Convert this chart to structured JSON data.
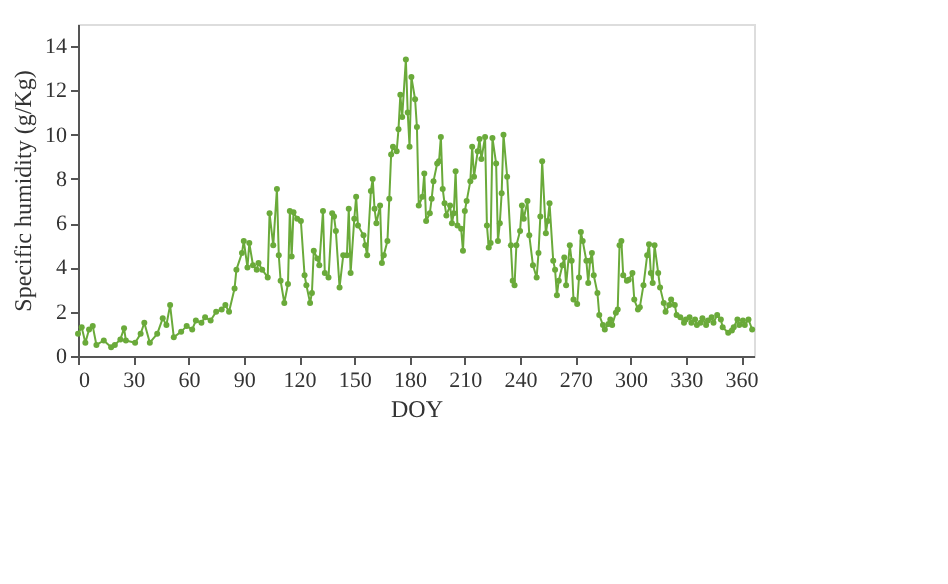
{
  "chart_data": {
    "type": "line",
    "xlabel": "DOY",
    "ylabel": "Specific humidity (g/Kg)",
    "xlim": [
      0,
      367
    ],
    "ylim": [
      0,
      15
    ],
    "xticks": [
      0,
      30,
      60,
      90,
      120,
      150,
      180,
      210,
      240,
      270,
      300,
      330,
      360
    ],
    "yticks": [
      0,
      2,
      4,
      6,
      8,
      10,
      12,
      14
    ],
    "grid": false,
    "marker": "circle",
    "line_style": "solid",
    "x": [
      0,
      2,
      4,
      6,
      8,
      10,
      14,
      18,
      20,
      23,
      25,
      26,
      31,
      34,
      36,
      39,
      43,
      46,
      48,
      50,
      52,
      56,
      59,
      62,
      64,
      67,
      69,
      72,
      75,
      78,
      80,
      82,
      85,
      86,
      89,
      90,
      92,
      93,
      95,
      97,
      98,
      100,
      103,
      104,
      106,
      108,
      109,
      110,
      112,
      114,
      115,
      116,
      117,
      119,
      121,
      123,
      124,
      126,
      127,
      128,
      130,
      131,
      133,
      134,
      136,
      138,
      139,
      140,
      142,
      144,
      146,
      147,
      148,
      150,
      151,
      152,
      155,
      156,
      157,
      159,
      160,
      161,
      162,
      164,
      165,
      166,
      168,
      169,
      170,
      171,
      173,
      174,
      175,
      176,
      178,
      179,
      180,
      181,
      183,
      184,
      185,
      187,
      188,
      189,
      191,
      192,
      193,
      195,
      196,
      197,
      198,
      199,
      200,
      202,
      203,
      204,
      205,
      206,
      208,
      209,
      210,
      211,
      213,
      214,
      215,
      217,
      218,
      219,
      221,
      222,
      223,
      224,
      225,
      227,
      228,
      229,
      230,
      231,
      233,
      235,
      236,
      237,
      238,
      240,
      241,
      242,
      244,
      245,
      247,
      249,
      250,
      251,
      252,
      254,
      255,
      256,
      258,
      259,
      260,
      261,
      263,
      264,
      265,
      267,
      268,
      269,
      271,
      272,
      273,
      274,
      276,
      277,
      278,
      279,
      280,
      282,
      283,
      285,
      286,
      288,
      289,
      290,
      292,
      293,
      294,
      295,
      296,
      298,
      299,
      301,
      302,
      304,
      305,
      307,
      309,
      310,
      311,
      312,
      313,
      315,
      316,
      318,
      319,
      321,
      322,
      324,
      325,
      327,
      329,
      330,
      332,
      333,
      335,
      336,
      338,
      339,
      341,
      342,
      344,
      345,
      347,
      349,
      350,
      353,
      355,
      356,
      358,
      359,
      361,
      362,
      364,
      366
    ],
    "series": [
      {
        "color": "#6aaa3a",
        "values": [
          1.0,
          1.3,
          0.6,
          1.2,
          1.35,
          0.5,
          0.7,
          0.4,
          0.5,
          0.75,
          1.25,
          0.7,
          0.6,
          1.0,
          1.5,
          0.6,
          1.0,
          1.7,
          1.4,
          2.3,
          0.85,
          1.1,
          1.35,
          1.2,
          1.6,
          1.5,
          1.75,
          1.6,
          2.0,
          2.1,
          2.3,
          2.0,
          3.05,
          3.9,
          4.65,
          5.2,
          4.0,
          5.1,
          4.1,
          3.9,
          4.2,
          3.9,
          3.55,
          6.45,
          5.0,
          7.55,
          4.55,
          3.4,
          2.4,
          3.25,
          6.55,
          4.5,
          6.5,
          6.2,
          6.1,
          3.65,
          3.2,
          2.4,
          2.85,
          4.75,
          4.4,
          4.1,
          6.55,
          3.75,
          3.55,
          6.45,
          6.3,
          5.65,
          3.1,
          4.55,
          4.55,
          6.65,
          3.75,
          6.2,
          7.2,
          5.9,
          5.45,
          5.0,
          4.55,
          7.45,
          8.0,
          6.65,
          6.0,
          6.8,
          4.2,
          4.55,
          5.2,
          7.1,
          9.1,
          9.45,
          9.25,
          10.25,
          11.8,
          10.8,
          13.4,
          11.0,
          9.45,
          12.6,
          11.6,
          10.35,
          6.8,
          7.2,
          8.25,
          6.1,
          6.45,
          7.1,
          7.9,
          8.7,
          8.8,
          9.9,
          7.55,
          6.9,
          6.35,
          6.8,
          6.0,
          6.45,
          8.35,
          5.9,
          5.75,
          4.75,
          6.55,
          7.0,
          7.9,
          9.45,
          8.1,
          9.25,
          9.8,
          8.9,
          9.9,
          5.9,
          4.9,
          5.1,
          9.85,
          8.7,
          5.2,
          6.0,
          7.35,
          10.0,
          8.1,
          5.0,
          3.4,
          3.2,
          5.0,
          5.65,
          6.8,
          6.2,
          7.0,
          5.45,
          4.1,
          3.55,
          4.65,
          6.3,
          8.8,
          5.55,
          6.1,
          6.9,
          4.3,
          3.9,
          2.75,
          3.4,
          4.1,
          4.45,
          3.2,
          5.0,
          4.3,
          2.55,
          2.35,
          3.55,
          5.6,
          5.2,
          4.3,
          3.3,
          4.3,
          4.65,
          3.65,
          2.85,
          1.85,
          1.4,
          1.2,
          1.45,
          1.65,
          1.4,
          1.95,
          2.1,
          5.0,
          5.2,
          3.65,
          3.4,
          3.45,
          3.75,
          2.55,
          2.1,
          2.2,
          3.2,
          4.55,
          5.05,
          3.75,
          3.3,
          5.0,
          3.75,
          3.1,
          2.4,
          2.0,
          2.3,
          2.55,
          2.3,
          1.85,
          1.75,
          1.5,
          1.65,
          1.75,
          1.5,
          1.65,
          1.4,
          1.5,
          1.7,
          1.4,
          1.6,
          1.75,
          1.5,
          1.85,
          1.65,
          1.3,
          1.05,
          1.15,
          1.3,
          1.65,
          1.4,
          1.6,
          1.4,
          1.65,
          1.2
        ]
      }
    ]
  }
}
